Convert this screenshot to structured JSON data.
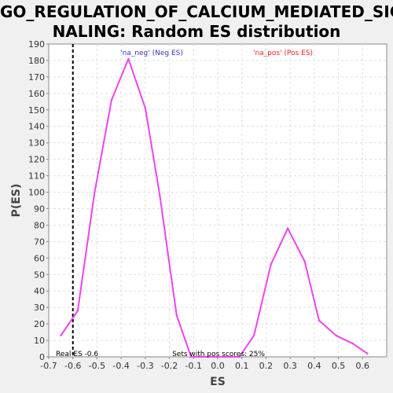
{
  "chart_data": {
    "type": "line",
    "title_lines": [
      "GO_REGULATION_OF_CALCIUM_MEDIATED_SIG",
      "NALING: Random ES distribution"
    ],
    "xlabel": "ES",
    "ylabel": "P(ES)",
    "xlim": [
      -0.7,
      0.7
    ],
    "ylim": [
      0,
      190
    ],
    "x_ticks": [
      -0.7,
      -0.6,
      -0.5,
      -0.4,
      -0.3,
      -0.2,
      -0.1,
      0.0,
      0.1,
      0.2,
      0.3,
      0.4,
      0.5,
      0.6
    ],
    "y_ticks": [
      0,
      10,
      20,
      30,
      40,
      50,
      60,
      70,
      80,
      90,
      100,
      110,
      120,
      130,
      140,
      150,
      160,
      170,
      180,
      190
    ],
    "grid": true,
    "series": [
      {
        "color": "#ee44ee",
        "x": [
          -0.65,
          -0.58,
          -0.51,
          -0.44,
          -0.37,
          -0.3,
          -0.24,
          -0.17,
          -0.11,
          -0.04,
          0.03,
          0.09,
          0.15,
          0.22,
          0.29,
          0.36,
          0.42,
          0.49,
          0.56,
          0.62
        ],
        "y": [
          13,
          28,
          100,
          156,
          181,
          151,
          98,
          25,
          0,
          0,
          0,
          0,
          13,
          56,
          78,
          58,
          22,
          13,
          8,
          2
        ]
      }
    ],
    "real_es": {
      "value": -0.6,
      "label": "Real ES -0.6",
      "color": "#000000"
    },
    "annotations": {
      "neg_label": "'na_neg' (Neg ES)",
      "neg_color": "#3333cc",
      "pos_label": "'na_pos' (Pos ES)",
      "pos_color": "#ee2222",
      "pos_scores_label": "Sets with pos scores: 25%"
    }
  }
}
